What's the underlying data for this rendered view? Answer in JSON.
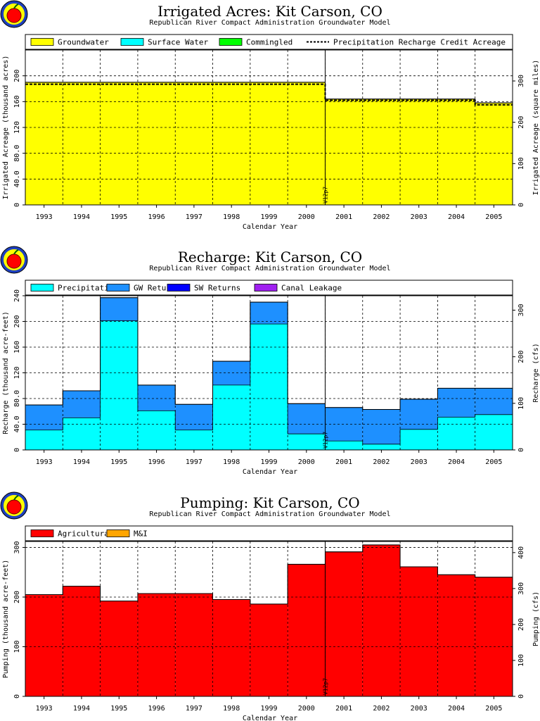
{
  "chart_data": [
    {
      "type": "area",
      "title": "Irrigated Acres: Kit Carson, CO",
      "subtitle": "Republican River Compact Administration Groundwater Model",
      "xlabel": "Calendar Year",
      "ylabel": "Irrigated Acreage (thousand acres)",
      "ylabel_right": "Irrigated Acreage (square miles)",
      "categories": [
        "1993",
        "1994",
        "1995",
        "1996",
        "1997",
        "1998",
        "1999",
        "2000",
        "2001",
        "2002",
        "2003",
        "2004",
        "2005"
      ],
      "ylim": [
        0,
        240
      ],
      "yticks": [
        0,
        40.0,
        80.0,
        120,
        160,
        200
      ],
      "ytick_labels": [
        "0",
        "40.0",
        "80.0",
        "120",
        "160",
        "200"
      ],
      "ylim_right": [
        0,
        375
      ],
      "yticks_right": [
        0,
        100,
        200,
        300
      ],
      "series": [
        {
          "name": "Groundwater",
          "color": "#ffff00",
          "values": [
            190,
            190,
            190,
            190,
            190,
            190,
            190,
            190,
            164,
            164,
            164,
            164,
            158
          ]
        },
        {
          "name": "Surface Water",
          "color": "#00ffff",
          "values": [
            0,
            0,
            0,
            0,
            0,
            0,
            0,
            0,
            0,
            0,
            0,
            0,
            0
          ]
        },
        {
          "name": "Commingled",
          "color": "#00ff00",
          "values": [
            0,
            0,
            0,
            0,
            0,
            0,
            0,
            0,
            0,
            0,
            0,
            0,
            0
          ]
        },
        {
          "name": "Precipitation Recharge Credit Acreage",
          "style": "dashed",
          "values": [
            187,
            187,
            187,
            187,
            187,
            187,
            187,
            187,
            162,
            162,
            162,
            162,
            155
          ]
        }
      ],
      "vertical_marker": {
        "label": "V12p7",
        "after": "2000"
      },
      "grid": true,
      "legend_position": "top"
    },
    {
      "type": "area",
      "title": "Recharge: Kit Carson, CO",
      "subtitle": "Republican River Compact Administration Groundwater Model",
      "xlabel": "Calendar Year",
      "ylabel": "Recharge (thousand acre-feet)",
      "ylabel_right": "Recharge (cfs)",
      "categories": [
        "1993",
        "1994",
        "1995",
        "1996",
        "1997",
        "1998",
        "1999",
        "2000",
        "2001",
        "2002",
        "2003",
        "2004",
        "2005"
      ],
      "ylim": [
        0,
        240
      ],
      "yticks": [
        0,
        40.0,
        80.0,
        120,
        160,
        200,
        240
      ],
      "ytick_labels": [
        "0",
        "40.0",
        "80.0",
        "120",
        "160",
        "200",
        "240"
      ],
      "ylim_right": [
        0,
        331
      ],
      "yticks_right": [
        0,
        100,
        200,
        300
      ],
      "series": [
        {
          "name": "Precipitation",
          "color": "#00ffff",
          "values": [
            31,
            50,
            201,
            61,
            31,
            101,
            196,
            25,
            14,
            9,
            32,
            51,
            55
          ]
        },
        {
          "name": "GW Returns",
          "color": "#1e90ff",
          "values": [
            39,
            42,
            36,
            40,
            40,
            37,
            34,
            47,
            52,
            54,
            47,
            45,
            41
          ]
        },
        {
          "name": "SW Returns",
          "color": "#0000ff",
          "values": [
            0,
            0,
            0,
            0,
            0,
            0,
            0,
            0,
            0,
            0,
            0,
            0,
            0
          ]
        },
        {
          "name": "Canal Leakage",
          "color": "#a020f0",
          "values": [
            0,
            0,
            0,
            0,
            0,
            0,
            0,
            0,
            0,
            0,
            0,
            0,
            0
          ]
        }
      ],
      "vertical_marker": {
        "label": "V12p7",
        "after": "2000"
      },
      "grid": true,
      "legend_position": "top"
    },
    {
      "type": "area",
      "title": "Pumping: Kit Carson, CO",
      "subtitle": "Republican River Compact Administration Groundwater Model",
      "xlabel": "Calendar Year",
      "ylabel": "Pumping (thousand acre-feet)",
      "ylabel_right": "Pumping (cfs)",
      "categories": [
        "1993",
        "1994",
        "1995",
        "1996",
        "1997",
        "1998",
        "1999",
        "2000",
        "2001",
        "2002",
        "2003",
        "2004",
        "2005"
      ],
      "ylim": [
        0,
        312
      ],
      "yticks": [
        0,
        100,
        200,
        300
      ],
      "ytick_labels": [
        "0",
        "100",
        "200",
        "300"
      ],
      "ylim_right": [
        0,
        431
      ],
      "yticks_right": [
        0,
        100,
        200,
        300,
        400
      ],
      "series": [
        {
          "name": "Agricultural",
          "color": "#ff0000",
          "values": [
            205,
            222,
            192,
            207,
            207,
            195,
            186,
            266,
            291,
            305,
            261,
            245,
            240
          ]
        },
        {
          "name": "M&I",
          "color": "#ffa500",
          "values": [
            0,
            0,
            0,
            0,
            0,
            0,
            0,
            0,
            0,
            0,
            0,
            0,
            0
          ]
        }
      ],
      "vertical_marker": {
        "label": "V12p7",
        "after": "2000"
      },
      "grid": true,
      "legend_position": "top"
    }
  ]
}
